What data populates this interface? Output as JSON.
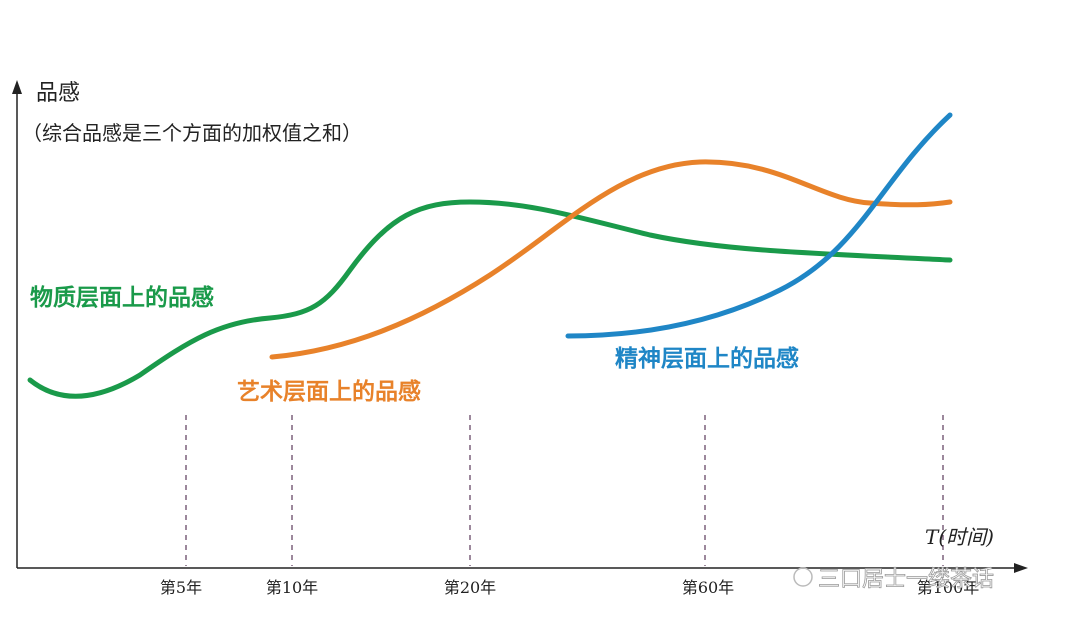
{
  "y_axis": {
    "label": "品感",
    "note": "（综合品感是三个方面的加权值之和）"
  },
  "x_axis": {
    "label": "T(时间)",
    "ticks": [
      "第5年",
      "第10年",
      "第20年",
      "第60年",
      "第100年"
    ]
  },
  "curves": [
    {
      "label": "物质层面上的品感"
    },
    {
      "label": "艺术层面上的品感"
    },
    {
      "label": "精神层面上的品感"
    }
  ],
  "watermark": "三口居士一缕茶话"
}
